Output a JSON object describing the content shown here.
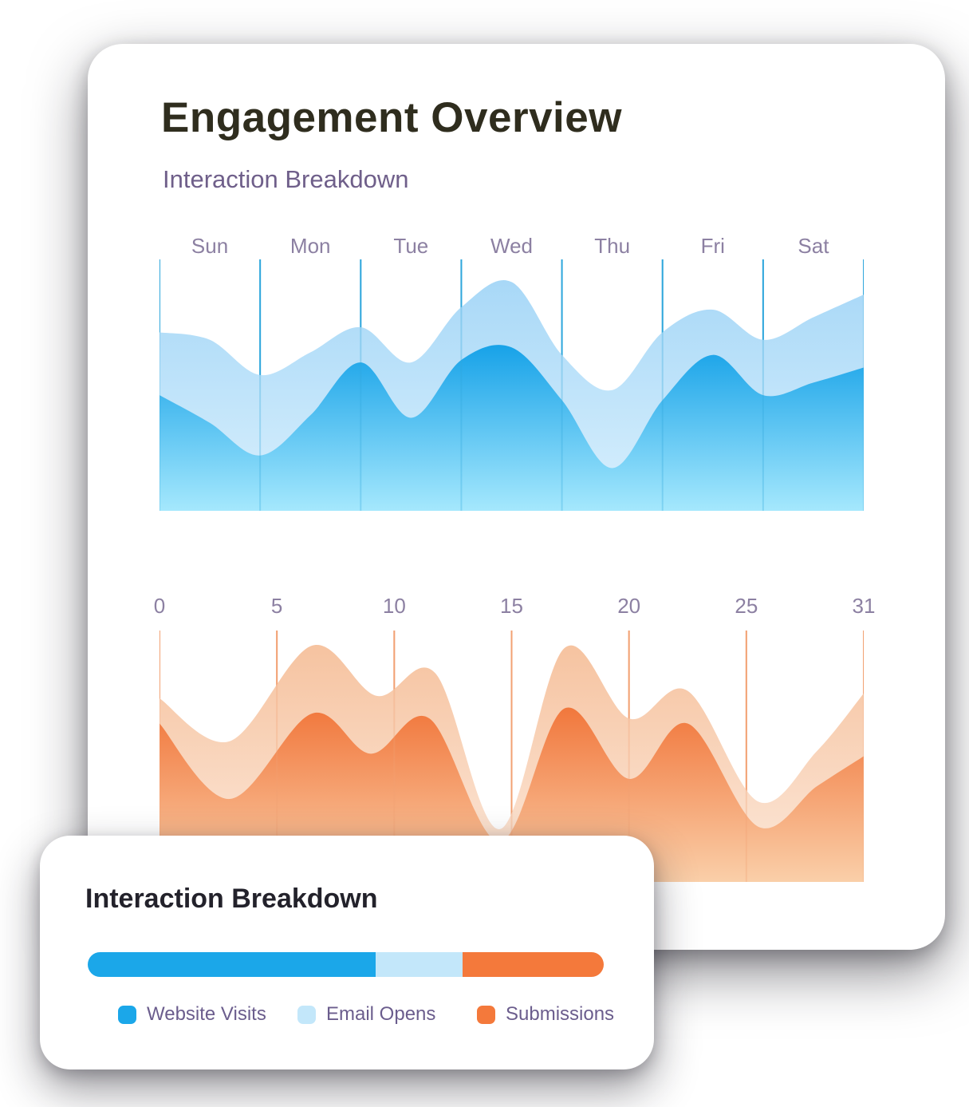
{
  "main_card": {
    "title": "Engagement Overview",
    "subtitle": "Interaction Breakdown"
  },
  "legend_card": {
    "title": "Interaction Breakdown",
    "stacked_bar": {
      "segments": [
        {
          "label": "Website Visits",
          "color": "#1BA7E9",
          "percent": 55.8
        },
        {
          "label": "Email Opens",
          "color": "#C3E7FA",
          "percent": 16.8
        },
        {
          "label": "Submissions",
          "color": "#F4793B",
          "percent": 27.4
        }
      ]
    },
    "legend": [
      {
        "label": "Website Visits",
        "color": "#1BA7E9"
      },
      {
        "label": "Email Opens",
        "color": "#C3E7FA"
      },
      {
        "label": "Submissions",
        "color": "#F4793B"
      }
    ]
  },
  "chart_data": [
    {
      "type": "area",
      "x_labels": [
        "Sun",
        "Mon",
        "Tue",
        "Wed",
        "Thu",
        "Fri",
        "Sat"
      ],
      "label_position": "between",
      "gridline_count": 8,
      "x_max": 7,
      "grid_color": "#2FA7DC",
      "ylim": [
        0,
        100
      ],
      "y_unit": "percent_of_plot_height",
      "series": [
        {
          "name": "back-wave-light-blue",
          "color_top": "#A8D8F7",
          "color_bottom": "#D9F0FD",
          "points": [
            [
              0,
              71
            ],
            [
              0.5,
              68
            ],
            [
              1,
              54
            ],
            [
              1.5,
              63
            ],
            [
              2,
              73
            ],
            [
              2.5,
              59
            ],
            [
              3,
              81
            ],
            [
              3.5,
              91
            ],
            [
              4,
              62
            ],
            [
              4.5,
              48
            ],
            [
              5,
              71
            ],
            [
              5.5,
              80
            ],
            [
              6,
              68
            ],
            [
              6.5,
              77
            ],
            [
              7,
              86
            ]
          ]
        },
        {
          "name": "front-wave-bright-blue",
          "color_top": "#17A2E8",
          "color_bottom": "#A5E8FD",
          "points": [
            [
              0,
              46
            ],
            [
              0.5,
              35
            ],
            [
              1,
              22
            ],
            [
              1.5,
              38
            ],
            [
              2,
              59
            ],
            [
              2.5,
              37
            ],
            [
              3,
              60
            ],
            [
              3.5,
              65
            ],
            [
              4,
              44
            ],
            [
              4.5,
              17
            ],
            [
              5,
              44
            ],
            [
              5.5,
              62
            ],
            [
              6,
              46
            ],
            [
              6.5,
              51
            ],
            [
              7,
              57
            ]
          ]
        }
      ]
    },
    {
      "type": "area",
      "x_labels": [
        "0",
        "5",
        "10",
        "15",
        "20",
        "25",
        "31"
      ],
      "label_position": "on",
      "gridline_count": 7,
      "x_max": 6,
      "grid_color": "#F2A173",
      "ylim": [
        0,
        100
      ],
      "y_unit": "percent_of_plot_height",
      "series": [
        {
          "name": "back-wave-light-orange",
          "color_top": "#F6C3A0",
          "color_bottom": "#FCE9DB",
          "points": [
            [
              0,
              73
            ],
            [
              0.6,
              56
            ],
            [
              1.3,
              94
            ],
            [
              1.85,
              74
            ],
            [
              2.35,
              83
            ],
            [
              2.9,
              21
            ],
            [
              3.45,
              93
            ],
            [
              4,
              65
            ],
            [
              4.5,
              76
            ],
            [
              5.1,
              32
            ],
            [
              5.6,
              52
            ],
            [
              6,
              75
            ]
          ]
        },
        {
          "name": "front-wave-bright-orange",
          "color_top": "#F1773C",
          "color_bottom": "#FACFA9",
          "points": [
            [
              0,
              63
            ],
            [
              0.6,
              33
            ],
            [
              1.3,
              67
            ],
            [
              1.8,
              51
            ],
            [
              2.3,
              65
            ],
            [
              2.9,
              16
            ],
            [
              3.45,
              69
            ],
            [
              4,
              41
            ],
            [
              4.5,
              63
            ],
            [
              5.1,
              22
            ],
            [
              5.6,
              38
            ],
            [
              6,
              50
            ]
          ]
        }
      ]
    }
  ]
}
